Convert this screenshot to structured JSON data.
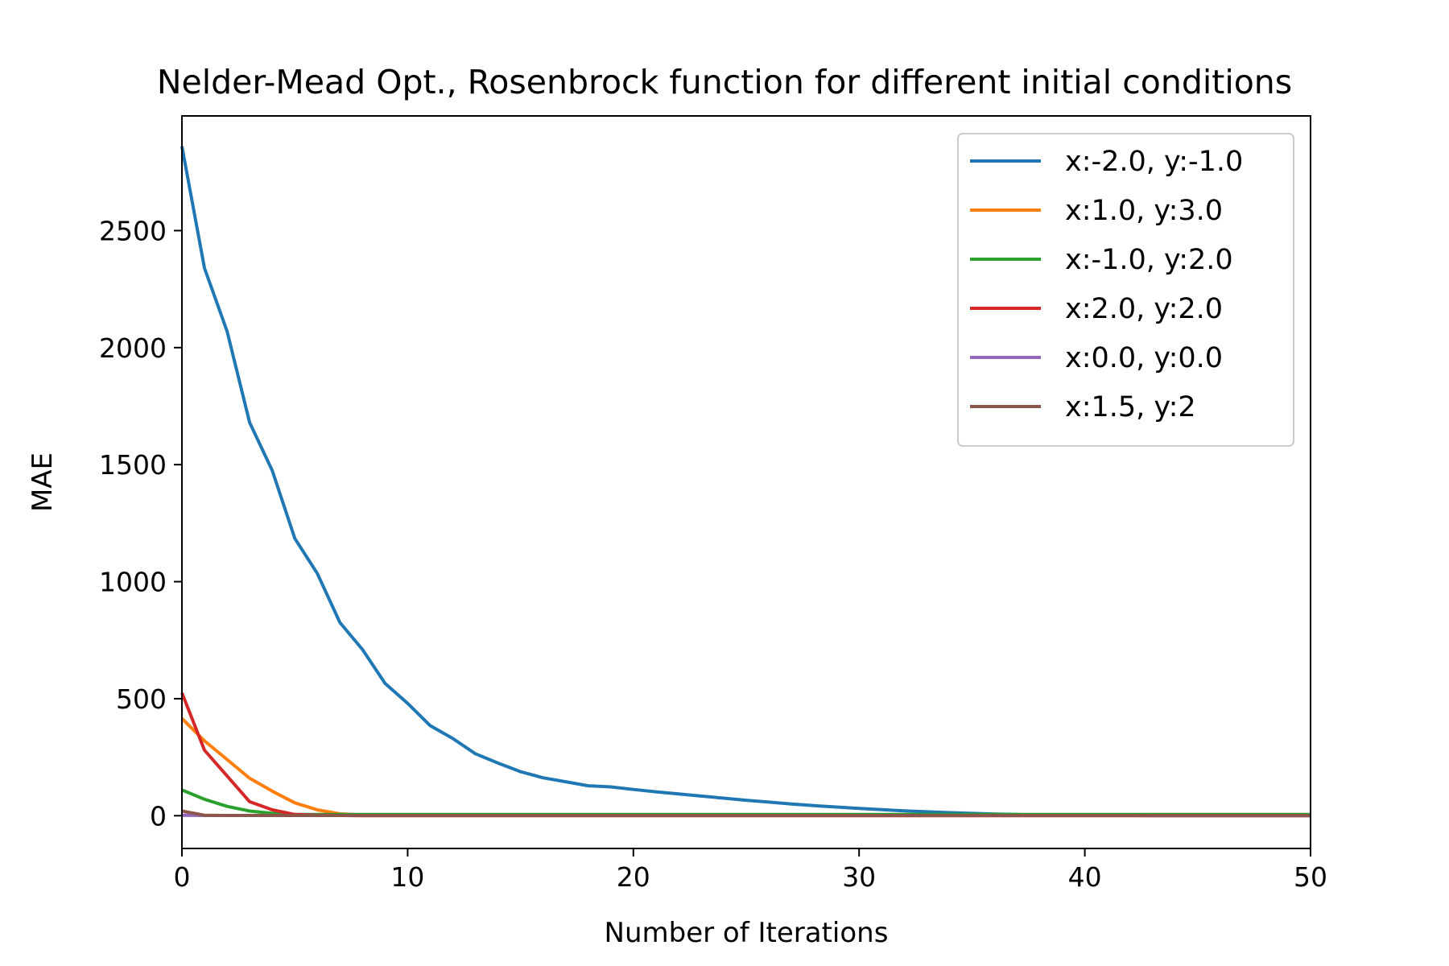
{
  "chart_data": {
    "type": "line",
    "title": "Nelder-Mead Opt., Rosenbrock function for different initial conditions",
    "xlabel": "Number of Iterations",
    "ylabel": "MAE",
    "xlim": [
      0,
      50
    ],
    "ylim": [
      -140,
      2990
    ],
    "xticks": [
      0,
      10,
      20,
      30,
      40,
      50
    ],
    "yticks": [
      0,
      500,
      1000,
      1500,
      2000,
      2500
    ],
    "grid": false,
    "legend_position": "top-right",
    "x": [
      0,
      1,
      2,
      3,
      4,
      5,
      6,
      7,
      8,
      9,
      10,
      11,
      12,
      13,
      14,
      15,
      16,
      17,
      18,
      19,
      20,
      21,
      22,
      23,
      24,
      25,
      26,
      27,
      28,
      29,
      30,
      31,
      32,
      33,
      34,
      35,
      36,
      37,
      38,
      39,
      40,
      41,
      42,
      43,
      44,
      45,
      46,
      47,
      48,
      49,
      50
    ],
    "series": [
      {
        "name": "x:-2.0, y:-1.0",
        "color": "#1f77b4",
        "values": [
          2860,
          2340,
          2070,
          1680,
          1475,
          1185,
          1035,
          825,
          710,
          565,
          480,
          385,
          330,
          265,
          225,
          188,
          162,
          145,
          128,
          123,
          112,
          102,
          93,
          84,
          75,
          66,
          58,
          50,
          43,
          37,
          31,
          26,
          21,
          17,
          13,
          10,
          7,
          5,
          3,
          2,
          1,
          1,
          1,
          0,
          0,
          0,
          0,
          0,
          0,
          0,
          0
        ]
      },
      {
        "name": "x:1.0, y:3.0",
        "color": "#ff7f0e",
        "values": [
          415,
          320,
          240,
          160,
          105,
          55,
          25,
          8,
          3,
          2,
          1,
          1,
          1,
          1,
          1,
          1,
          1,
          1,
          1,
          1,
          1,
          1,
          1,
          1,
          1,
          1,
          1,
          1,
          1,
          1,
          1,
          1,
          1,
          1,
          1,
          1,
          1,
          1,
          1,
          1,
          1,
          1,
          1,
          1,
          1,
          1,
          1,
          1,
          1,
          1,
          1
        ]
      },
      {
        "name": "x:-1.0, y:2.0",
        "color": "#2ca02c",
        "values": [
          110,
          70,
          40,
          20,
          10,
          5,
          5,
          5,
          5,
          5,
          5,
          5,
          5,
          5,
          5,
          5,
          5,
          5,
          5,
          5,
          5,
          5,
          5,
          5,
          5,
          5,
          5,
          5,
          5,
          5,
          5,
          5,
          5,
          5,
          5,
          5,
          5,
          5,
          5,
          5,
          5,
          5,
          5,
          5,
          5,
          5,
          5,
          5,
          5,
          5,
          5
        ]
      },
      {
        "name": "x:2.0, y:2.0",
        "color": "#d62728",
        "values": [
          525,
          280,
          170,
          60,
          25,
          5,
          2,
          1,
          0,
          0,
          0,
          0,
          0,
          0,
          0,
          0,
          0,
          0,
          0,
          0,
          0,
          0,
          0,
          0,
          0,
          0,
          0,
          0,
          0,
          0,
          0,
          0,
          0,
          0,
          0,
          0,
          0,
          0,
          0,
          0,
          0,
          0,
          0,
          0,
          0,
          0,
          0,
          0,
          0,
          0,
          0
        ]
      },
      {
        "name": "x:0.0, y:0.0",
        "color": "#9467bd",
        "values": [
          2,
          1,
          1,
          1,
          1,
          1,
          1,
          1,
          1,
          1,
          1,
          1,
          1,
          1,
          1,
          1,
          1,
          1,
          1,
          1,
          1,
          1,
          1,
          1,
          1,
          1,
          1,
          1,
          1,
          1,
          1,
          1,
          1,
          1,
          1,
          1,
          1,
          1,
          1,
          1,
          1,
          1,
          1,
          1,
          1,
          1,
          1,
          1,
          1,
          1,
          1
        ]
      },
      {
        "name": "x:1.5, y:2",
        "color": "#8c564b",
        "values": [
          20,
          2,
          1,
          1,
          1,
          1,
          1,
          1,
          1,
          1,
          1,
          1,
          1,
          1,
          1,
          1,
          1,
          1,
          1,
          1,
          1,
          1,
          1,
          1,
          1,
          1,
          1,
          1,
          1,
          1,
          1,
          1,
          1,
          1,
          1,
          1,
          1,
          1,
          1,
          1,
          1,
          1,
          1,
          1,
          1,
          1,
          1,
          1,
          1,
          1,
          1
        ]
      }
    ]
  }
}
